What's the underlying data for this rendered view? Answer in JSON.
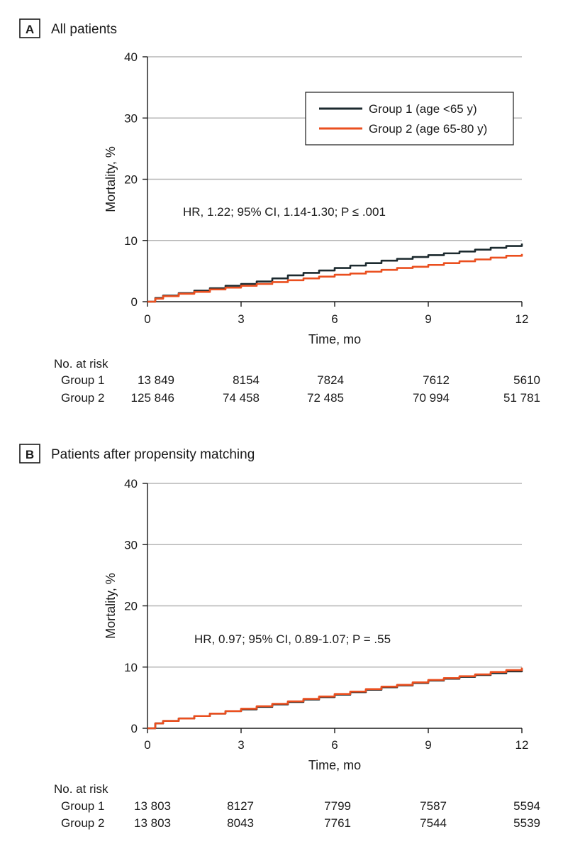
{
  "chart_data": [
    {
      "type": "line",
      "panel_label": "A",
      "title": "All patients",
      "xlabel": "Time, mo",
      "ylabel": "Mortality, %",
      "xlim": [
        0,
        12
      ],
      "ylim": [
        0,
        40
      ],
      "xticks": [
        "0",
        "3",
        "6",
        "9",
        "12"
      ],
      "yticks": [
        "0",
        "10",
        "20",
        "30",
        "40"
      ],
      "grid": true,
      "legend_position": "top-right",
      "annotation": "HR, 1.22; 95% CI, 1.14-1.30; P ≤ .001",
      "series": [
        {
          "name": "Group 1 (age <65 y)",
          "color": "#1c2a2f",
          "x": [
            0,
            0.25,
            0.5,
            1,
            1.5,
            2,
            2.5,
            3,
            3.5,
            4,
            4.5,
            5,
            5.5,
            6,
            6.5,
            7,
            7.5,
            8,
            8.5,
            9,
            9.5,
            10,
            10.5,
            11,
            11.5,
            12
          ],
          "values": [
            0,
            0.6,
            1.0,
            1.4,
            1.8,
            2.2,
            2.6,
            2.9,
            3.3,
            3.8,
            4.3,
            4.7,
            5.1,
            5.5,
            5.9,
            6.3,
            6.7,
            7.0,
            7.3,
            7.6,
            7.9,
            8.2,
            8.5,
            8.8,
            9.1,
            9.5
          ]
        },
        {
          "name": "Group 2 (age 65-80 y)",
          "color": "#ea4f1f",
          "x": [
            0,
            0.25,
            0.5,
            1,
            1.5,
            2,
            2.5,
            3,
            3.5,
            4,
            4.5,
            5,
            5.5,
            6,
            6.5,
            7,
            7.5,
            8,
            8.5,
            9,
            9.5,
            10,
            10.5,
            11,
            11.5,
            12
          ],
          "values": [
            0,
            0.5,
            0.9,
            1.3,
            1.6,
            2.0,
            2.3,
            2.6,
            2.9,
            3.2,
            3.5,
            3.8,
            4.1,
            4.4,
            4.6,
            4.9,
            5.2,
            5.5,
            5.7,
            6.0,
            6.3,
            6.6,
            6.9,
            7.2,
            7.5,
            7.8
          ]
        }
      ],
      "risk_table": {
        "heading": "No. at risk",
        "rows": [
          {
            "label": "Group 1",
            "values": [
              "13 849",
              "8154",
              "7824",
              "7612",
              "5610"
            ]
          },
          {
            "label": "Group 2",
            "values": [
              "125 846",
              "74 458",
              "72 485",
              "70 994",
              "51 781"
            ]
          }
        ]
      }
    },
    {
      "type": "line",
      "panel_label": "B",
      "title": "Patients after propensity matching",
      "xlabel": "Time, mo",
      "ylabel": "Mortality, %",
      "xlim": [
        0,
        12
      ],
      "ylim": [
        0,
        40
      ],
      "xticks": [
        "0",
        "3",
        "6",
        "9",
        "12"
      ],
      "yticks": [
        "0",
        "10",
        "20",
        "30",
        "40"
      ],
      "grid": true,
      "annotation": "HR, 0.97; 95% CI, 0.89-1.07; P = .55",
      "series": [
        {
          "name": "Group 1 (age <65 y)",
          "color": "#1c2a2f",
          "x": [
            0,
            0.25,
            0.5,
            1,
            1.5,
            2,
            2.5,
            3,
            3.5,
            4,
            4.5,
            5,
            5.5,
            6,
            6.5,
            7,
            7.5,
            8,
            8.5,
            9,
            9.5,
            10,
            10.5,
            11,
            11.5,
            12
          ],
          "values": [
            0,
            0.8,
            1.2,
            1.6,
            2.0,
            2.4,
            2.8,
            3.1,
            3.5,
            3.9,
            4.3,
            4.7,
            5.1,
            5.5,
            5.9,
            6.3,
            6.7,
            7.0,
            7.4,
            7.8,
            8.1,
            8.4,
            8.7,
            9.0,
            9.3,
            9.7
          ]
        },
        {
          "name": "Group 2 (age 65-80 y)",
          "color": "#ea4f1f",
          "x": [
            0,
            0.25,
            0.5,
            1,
            1.5,
            2,
            2.5,
            3,
            3.5,
            4,
            4.5,
            5,
            5.5,
            6,
            6.5,
            7,
            7.5,
            8,
            8.5,
            9,
            9.5,
            10,
            10.5,
            11,
            11.5,
            12
          ],
          "values": [
            0,
            0.8,
            1.2,
            1.6,
            2.0,
            2.4,
            2.8,
            3.2,
            3.6,
            4.0,
            4.4,
            4.8,
            5.2,
            5.6,
            6.0,
            6.4,
            6.8,
            7.1,
            7.5,
            7.9,
            8.2,
            8.5,
            8.8,
            9.2,
            9.5,
            9.9
          ]
        }
      ],
      "risk_table": {
        "heading": "No. at risk",
        "rows": [
          {
            "label": "Group 1",
            "values": [
              "13 803",
              "8127",
              "7799",
              "7587",
              "5594"
            ]
          },
          {
            "label": "Group 2",
            "values": [
              "13 803",
              "8043",
              "7761",
              "7544",
              "5539"
            ]
          }
        ]
      }
    }
  ]
}
